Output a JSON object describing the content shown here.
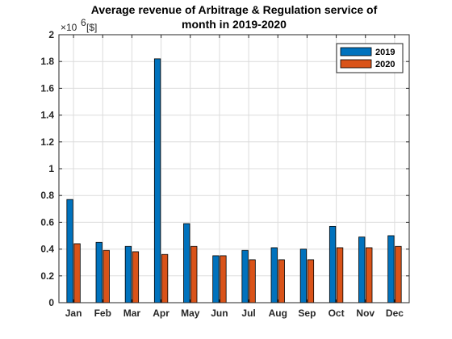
{
  "chart_data": {
    "type": "bar",
    "title": [
      "Average revenue of Arbitrage & Regulation service of",
      "month in 2019-2020"
    ],
    "ylabel_multiplier": "×10",
    "ylabel_exponent": "6",
    "ylabel_unit": "[$]",
    "categories": [
      "Jan",
      "Feb",
      "Mar",
      "Apr",
      "May",
      "Jun",
      "Jul",
      "Aug",
      "Sep",
      "Oct",
      "Nov",
      "Dec"
    ],
    "yticks": [
      "0",
      "0.2",
      "0.4",
      "0.6",
      "0.8",
      "1",
      "1.2",
      "1.4",
      "1.6",
      "1.8",
      "2"
    ],
    "ylim": [
      0,
      2
    ],
    "grid": true,
    "legend_position": "top-right",
    "series": [
      {
        "name": "2019",
        "color": "#0072BD",
        "values": [
          0.77,
          0.45,
          0.42,
          1.82,
          0.59,
          0.35,
          0.39,
          0.41,
          0.4,
          0.57,
          0.49,
          0.5
        ]
      },
      {
        "name": "2020",
        "color": "#D95319",
        "values": [
          0.44,
          0.39,
          0.38,
          0.36,
          0.42,
          0.35,
          0.32,
          0.32,
          0.32,
          0.41,
          0.41,
          0.42
        ]
      }
    ]
  }
}
